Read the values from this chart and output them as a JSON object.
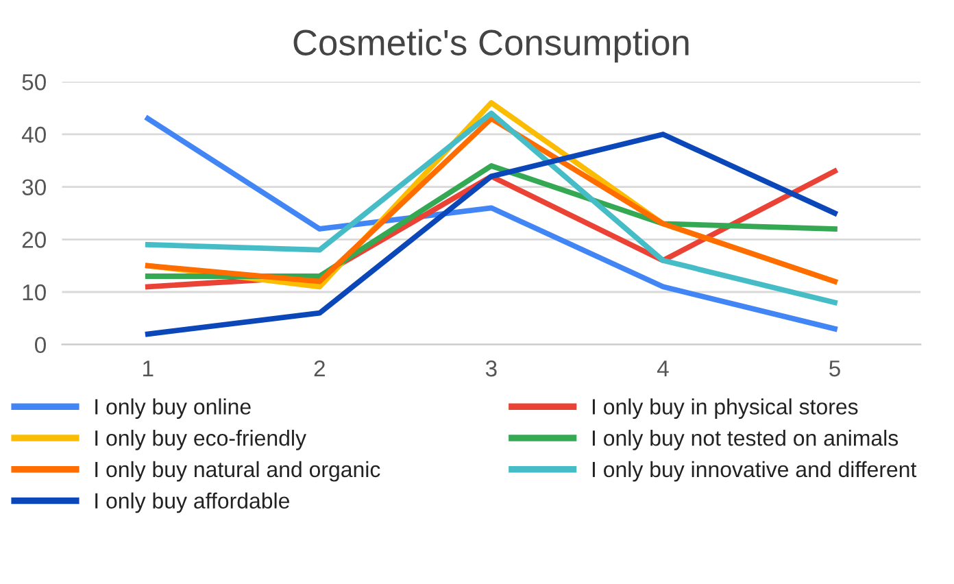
{
  "chart_data": {
    "type": "line",
    "title": "Cosmetic's Consumption",
    "categories": [
      "1",
      "2",
      "3",
      "4",
      "5"
    ],
    "series": [
      {
        "name": "I only buy online",
        "color": "#4285f4",
        "values": [
          43,
          22,
          26,
          11,
          3
        ]
      },
      {
        "name": "I only buy in physical stores",
        "color": "#ea4335",
        "values": [
          11,
          13,
          32,
          16,
          33
        ]
      },
      {
        "name": "I only buy eco-friendly",
        "color": "#fbbc04",
        "values": [
          15,
          11,
          46,
          23,
          12
        ]
      },
      {
        "name": "I only buy not tested on animals",
        "color": "#34a853",
        "values": [
          13,
          13,
          34,
          23,
          22
        ]
      },
      {
        "name": "I only buy natural and organic",
        "color": "#ff6d01",
        "values": [
          15,
          12,
          43,
          23,
          12
        ]
      },
      {
        "name": "I only buy innovative and different",
        "color": "#46bdc6",
        "values": [
          19,
          18,
          44,
          16,
          8
        ]
      },
      {
        "name": "I only buy affordable",
        "color": "#0b47b8",
        "values": [
          2,
          6,
          32,
          40,
          25
        ]
      }
    ],
    "ylim": [
      0,
      50
    ],
    "yticks": [
      0,
      10,
      20,
      30,
      40,
      50
    ],
    "grid": "y",
    "legend": "bottom",
    "marker": "none",
    "line_style": "solid"
  }
}
